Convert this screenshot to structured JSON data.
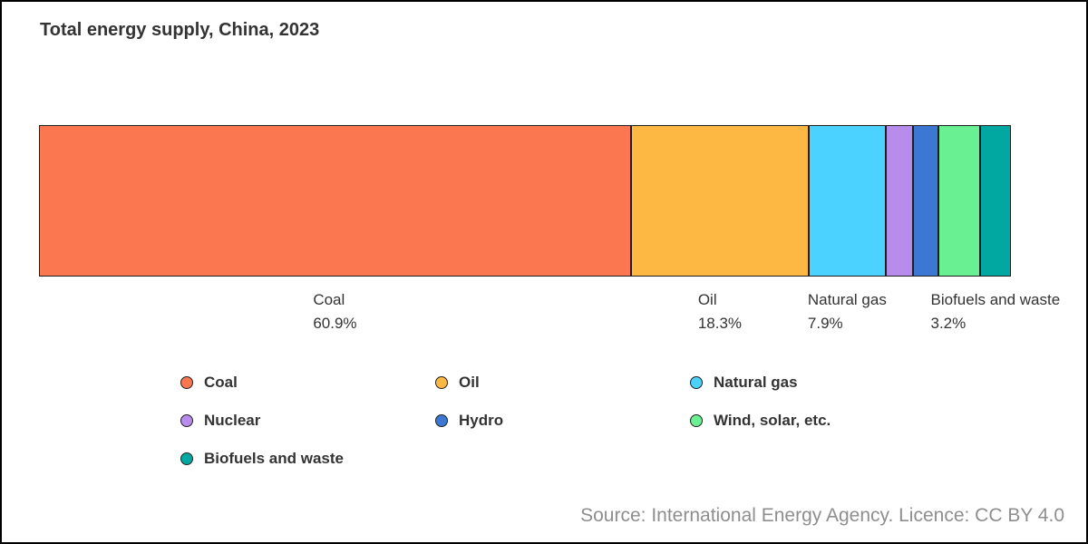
{
  "page": {
    "title": "Total energy supply, China, 2023",
    "source_note": "Source: International Energy Agency. Licence: CC BY 4.0"
  },
  "chart_data": {
    "type": "bar",
    "variant": "horizontal-stacked-100-percent",
    "title": "Total energy supply, China, 2023",
    "unit": "%",
    "xlim": [
      0,
      100
    ],
    "grid": false,
    "legend_position": "bottom-left",
    "segment_border_color": "#1f1f1f",
    "label_text_color": "#333333",
    "series": [
      {
        "name": "Coal",
        "value": 60.9,
        "color": "#fb7750",
        "show_label": true
      },
      {
        "name": "Oil",
        "value": 18.3,
        "color": "#fdb844",
        "show_label": true
      },
      {
        "name": "Natural gas",
        "value": 7.9,
        "color": "#4bd2fe",
        "show_label": true
      },
      {
        "name": "Nuclear",
        "value": 2.8,
        "color": "#b78cec",
        "show_label": false
      },
      {
        "name": "Hydro",
        "value": 2.6,
        "color": "#3c78d3",
        "show_label": false
      },
      {
        "name": "Wind, solar, etc.",
        "value": 4.3,
        "color": "#69f093",
        "show_label": false
      },
      {
        "name": "Biofuels and waste",
        "value": 3.2,
        "color": "#00a8a1",
        "show_label": true
      }
    ]
  }
}
